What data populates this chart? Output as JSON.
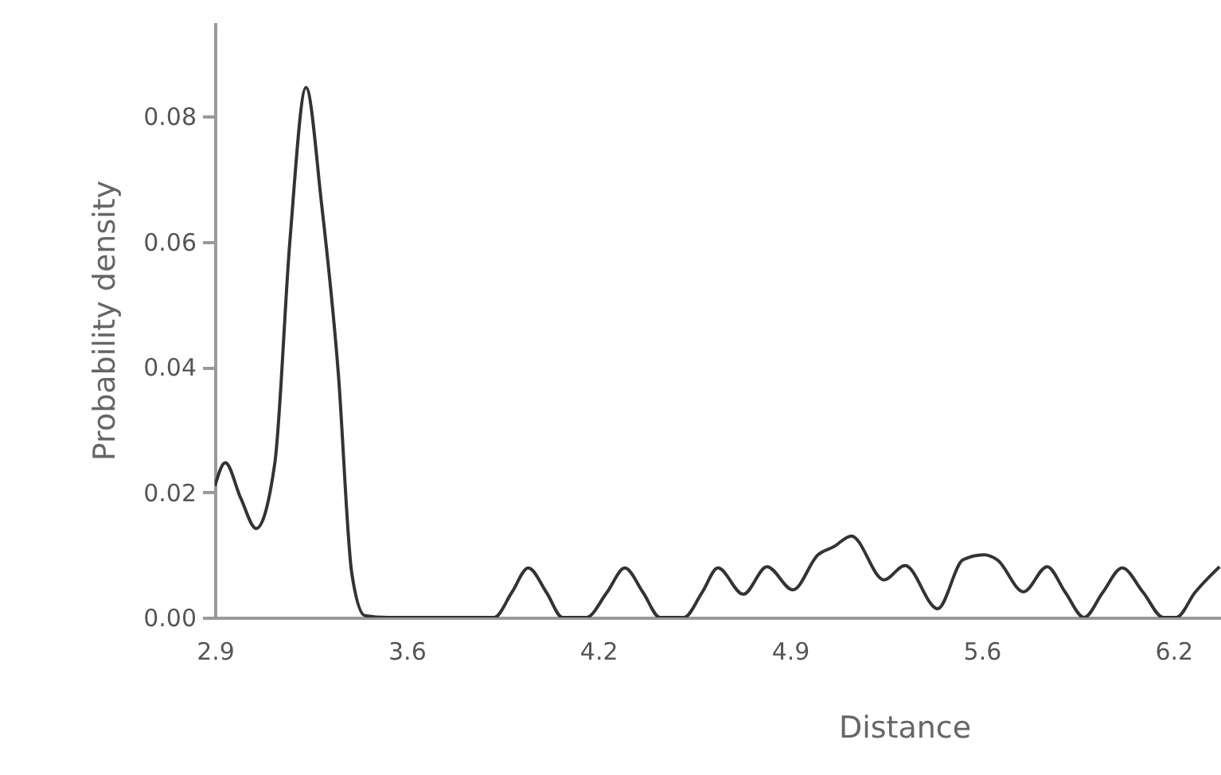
{
  "chart_data": {
    "type": "line",
    "xlabel": "Distance",
    "ylabel": "Probability density",
    "x": [
      2.9,
      2.936,
      2.99,
      3.043,
      3.108,
      3.16,
      3.216,
      3.27,
      3.328,
      3.375,
      3.42,
      3.5,
      3.7,
      3.869,
      3.93,
      3.987,
      4.05,
      4.106,
      4.188,
      4.26,
      4.322,
      4.385,
      4.444,
      4.527,
      4.59,
      4.645,
      4.733,
      4.815,
      4.905,
      4.992,
      5.047,
      5.108,
      5.221,
      5.294,
      5.407,
      5.495,
      5.568,
      5.614,
      5.705,
      5.787,
      5.85,
      5.915,
      5.98,
      6.047,
      6.12,
      6.19,
      6.235,
      6.3,
      6.385
    ],
    "series": [
      {
        "color": "#333333",
        "values": [
          0.021,
          0.0247,
          0.019,
          0.0142,
          0.0247,
          0.06,
          0.0846,
          0.066,
          0.039,
          0.007,
          0.0003,
          0,
          0,
          0,
          0.004,
          0.0079,
          0.004,
          0,
          0,
          0.004,
          0.0079,
          0.004,
          0,
          0,
          0.004,
          0.0079,
          0.0037,
          0.0081,
          0.0044,
          0.01,
          0.0113,
          0.013,
          0.006,
          0.0083,
          0.0014,
          0.0092,
          0.01,
          0.0092,
          0.0041,
          0.0081,
          0.004,
          0,
          0.004,
          0.0079,
          0.004,
          0,
          0,
          0.004,
          0.0081
        ]
      }
    ],
    "xlim": [
      2.9,
      6.39
    ],
    "xticks": [
      2.9,
      {
        "value": 3.565,
        "label": "3.6"
      },
      {
        "value": 4.23,
        "label": "4.2"
      },
      {
        "value": 4.895,
        "label": "4.9"
      },
      {
        "value": 5.56,
        "label": "5.6"
      },
      {
        "value": 6.225,
        "label": "6.2"
      }
    ],
    "ylim": [
      0,
      0.095
    ],
    "yticks": [
      {
        "value": 0,
        "label": "0.00"
      },
      {
        "value": 0.02,
        "label": "0.02"
      },
      {
        "value": 0.04,
        "label": "0.04"
      },
      {
        "value": 0.06,
        "label": "0.06"
      },
      {
        "value": 0.08,
        "label": "0.08"
      }
    ],
    "grid": false,
    "marker": "none",
    "line_style": "solid"
  }
}
